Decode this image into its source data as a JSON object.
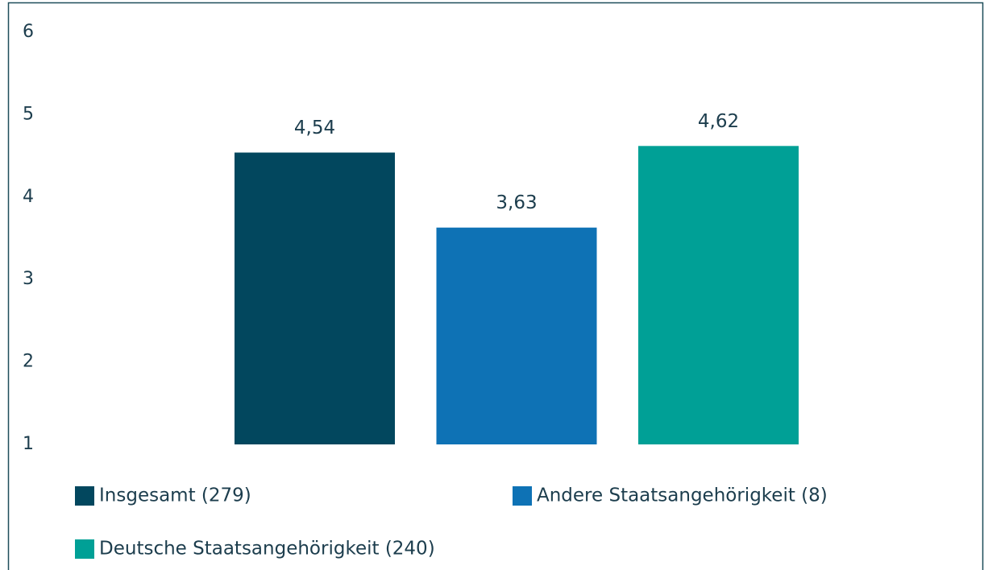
{
  "chart_data": {
    "type": "bar",
    "series": [
      {
        "name": "Insgesamt (279)",
        "color": "#02475e",
        "values": [
          4.54
        ],
        "value_labels": [
          "4,54"
        ]
      },
      {
        "name": "Andere Staatsangehörigkeit (8)",
        "color": "#0e72b5",
        "values": [
          3.63
        ],
        "value_labels": [
          "3,63"
        ]
      },
      {
        "name": "Deutsche Staatsangehörigkeit (240)",
        "color": "#00a096",
        "values": [
          4.62
        ],
        "value_labels": [
          "4,62"
        ]
      }
    ],
    "ylim": [
      1,
      6
    ],
    "yticks": [
      1,
      2,
      3,
      4,
      5,
      6
    ],
    "grid": false
  }
}
